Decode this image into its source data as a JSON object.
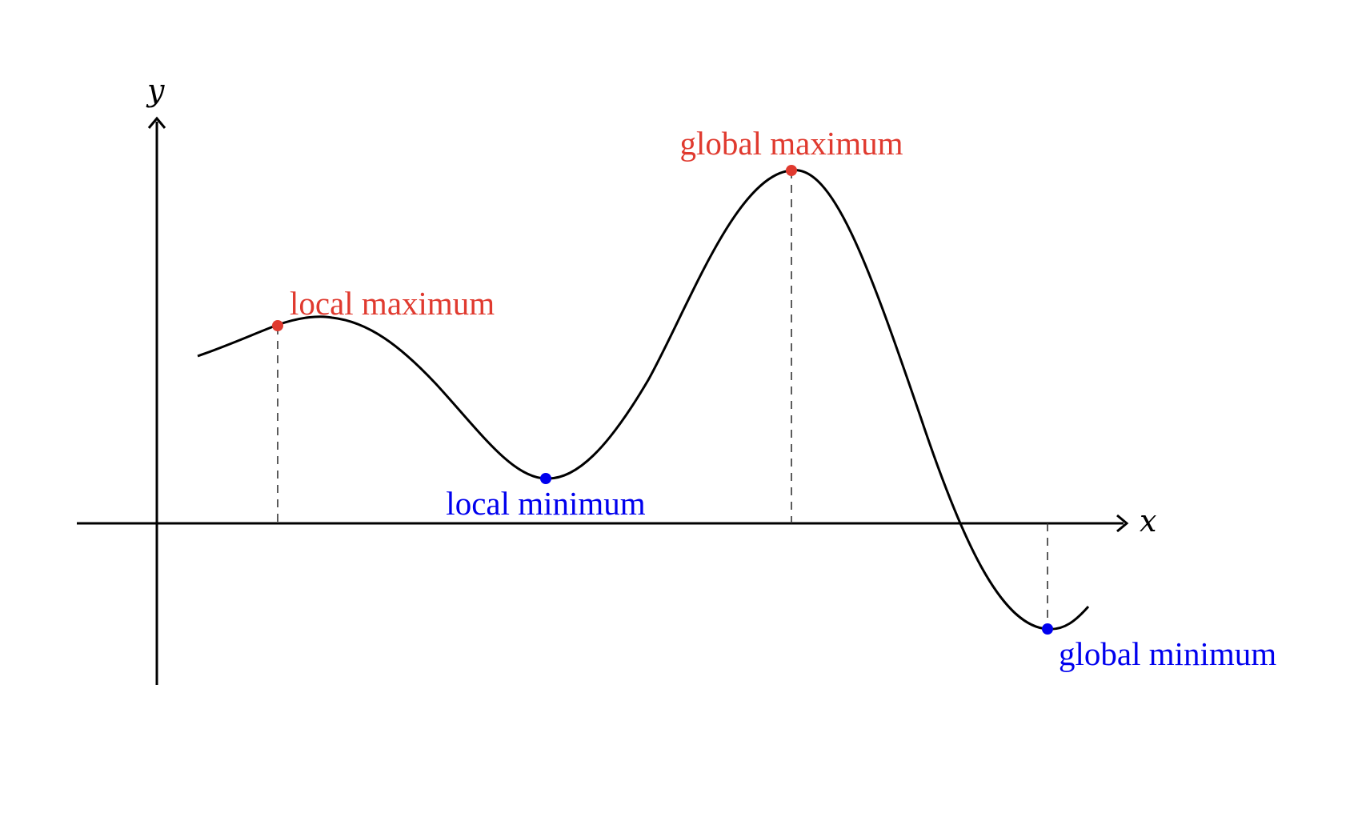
{
  "axes": {
    "x_label": "x",
    "y_label": "y"
  },
  "points": {
    "local_max": {
      "label": "local maximum",
      "kind": "maximum"
    },
    "local_min": {
      "label": "local minimum",
      "kind": "minimum"
    },
    "global_max": {
      "label": "global maximum",
      "kind": "maximum"
    },
    "global_min": {
      "label": "global minimum",
      "kind": "minimum"
    }
  },
  "colors": {
    "maximum": "#e03a2f",
    "minimum": "#0000ee",
    "axis": "#000000",
    "curve": "#000000"
  }
}
